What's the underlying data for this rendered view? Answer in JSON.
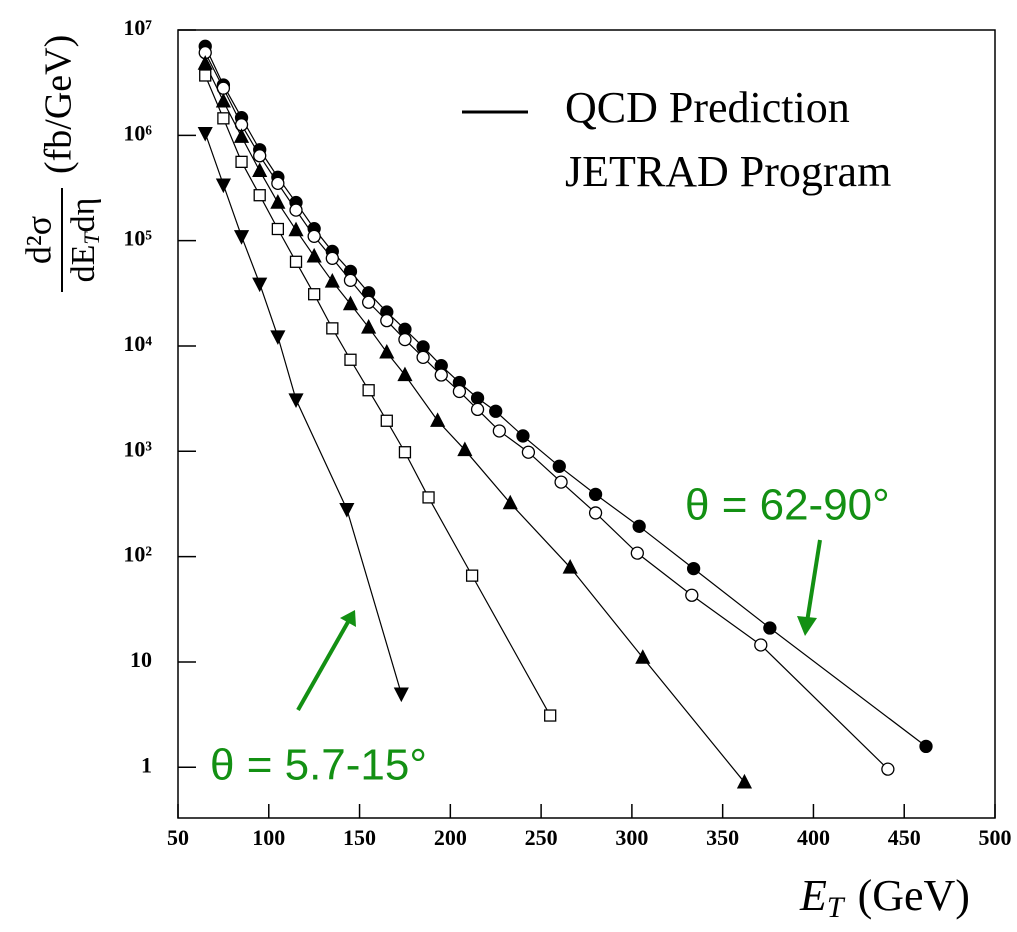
{
  "chart_data": {
    "type": "scatter",
    "log_y": true,
    "xlim": [
      50,
      500
    ],
    "ylim": [
      0.33,
      10000000
    ],
    "xticks": [
      50,
      100,
      150,
      200,
      250,
      300,
      350,
      400,
      450,
      500
    ],
    "yticks": [
      1,
      10,
      {
        "value": 100,
        "label": "10²"
      },
      {
        "value": 1000,
        "label": "10³"
      },
      {
        "value": 10000,
        "label": "10⁴"
      },
      {
        "value": 100000,
        "label": "10⁵"
      },
      {
        "value": 1000000,
        "label": "10⁶"
      },
      {
        "value": 10000000,
        "label": "10⁷"
      }
    ],
    "x_label": {
      "main": "E",
      "sub": "T",
      "unit": "(GeV)"
    },
    "y_label": {
      "numerator": "d²σ",
      "denominator_main": "dE",
      "denominator_sub": "T",
      "denominator_end": "dη",
      "unit": "(fb/GeV)"
    },
    "legend": [
      "QCD Prediction",
      "JETRAD Program"
    ],
    "annotations": [
      "θ = 62-90°",
      "θ = 5.7-15°"
    ],
    "series": [
      {
        "marker": "filled-circle",
        "color": "#000000",
        "x": [
          65,
          75,
          85,
          95,
          105,
          115,
          125,
          135,
          145,
          155,
          165,
          175,
          185,
          195,
          205,
          215,
          225,
          240,
          260,
          280,
          304,
          334,
          376,
          462
        ],
        "values": [
          7000000,
          3000000,
          1470000,
          730000,
          400000,
          230000,
          130000,
          79000,
          51000,
          32000,
          21000,
          14400,
          9800,
          6500,
          4500,
          3200,
          2400,
          1400,
          720,
          390,
          194,
          77,
          21,
          1.58
        ]
      },
      {
        "marker": "open-circle",
        "color": "#000000",
        "x": [
          65,
          75,
          85,
          95,
          105,
          115,
          125,
          135,
          145,
          155,
          165,
          175,
          185,
          195,
          205,
          215,
          227,
          243,
          261,
          280,
          303,
          333,
          371,
          441
        ],
        "values": [
          6100000,
          2800000,
          1260000,
          640000,
          350000,
          195000,
          110000,
          68000,
          42000,
          26000,
          17400,
          11500,
          7800,
          5300,
          3700,
          2500,
          1560,
          980,
          510,
          260,
          108,
          43,
          14.5,
          0.96
        ]
      },
      {
        "marker": "filled-triangle-up",
        "color": "#000000",
        "x": [
          65,
          75,
          85,
          95,
          105,
          115,
          125,
          135,
          145,
          155,
          165,
          175,
          193,
          208,
          233,
          266,
          306,
          362
        ],
        "values": [
          4800000,
          2100000,
          970000,
          460000,
          230000,
          126000,
          71000,
          41000,
          25000,
          15000,
          8700,
          5300,
          1950,
          1030,
          322,
          79,
          11,
          0.72
        ]
      },
      {
        "marker": "open-square",
        "color": "#000000",
        "x": [
          65,
          75,
          85,
          95,
          105,
          115,
          125,
          135,
          145,
          155,
          165,
          175,
          188,
          212,
          255
        ],
        "values": [
          3700000,
          1450000,
          560000,
          270000,
          129000,
          63000,
          31000,
          14700,
          7400,
          3800,
          1950,
          980,
          365,
          66,
          3.1
        ]
      },
      {
        "marker": "filled-triangle-down",
        "color": "#000000",
        "x": [
          65,
          75,
          85,
          95,
          105,
          115,
          143,
          173
        ],
        "values": [
          1050000,
          340000,
          110000,
          39000,
          12300,
          3100,
          282,
          5.0
        ]
      }
    ]
  }
}
